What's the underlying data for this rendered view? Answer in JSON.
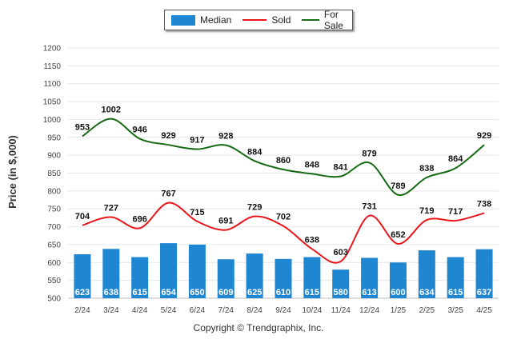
{
  "legend": {
    "median_label": "Median",
    "sold_label": "Sold",
    "forsale_label": "For Sale"
  },
  "colors": {
    "median": "#1f86d1",
    "sold": "#e8161b",
    "forsale": "#156a13"
  },
  "copyright": "Copyright © Trendgraphix, Inc.",
  "chart_data": {
    "type": "bar",
    "ylabel": "Price (in $,000)",
    "ylim": [
      500,
      1200
    ],
    "yticks": [
      500,
      550,
      600,
      650,
      700,
      750,
      800,
      850,
      900,
      950,
      1000,
      1050,
      1100,
      1150,
      1200
    ],
    "grid": true,
    "legend_position": "top-center",
    "categories": [
      "2/24",
      "3/24",
      "4/24",
      "5/24",
      "6/24",
      "7/24",
      "8/24",
      "9/24",
      "10/24",
      "11/24",
      "12/24",
      "1/25",
      "2/25",
      "3/25",
      "4/25"
    ],
    "series": [
      {
        "name": "Median",
        "type": "bar",
        "values": [
          623,
          638,
          615,
          654,
          650,
          609,
          625,
          610,
          615,
          580,
          613,
          600,
          634,
          615,
          637
        ]
      },
      {
        "name": "Sold",
        "type": "line",
        "values": [
          704,
          727,
          696,
          767,
          715,
          691,
          729,
          702,
          638,
          603,
          731,
          652,
          719,
          717,
          738
        ]
      },
      {
        "name": "For Sale",
        "type": "line",
        "values": [
          953,
          1002,
          946,
          929,
          917,
          928,
          884,
          860,
          848,
          841,
          879,
          789,
          838,
          864,
          929
        ]
      }
    ]
  }
}
